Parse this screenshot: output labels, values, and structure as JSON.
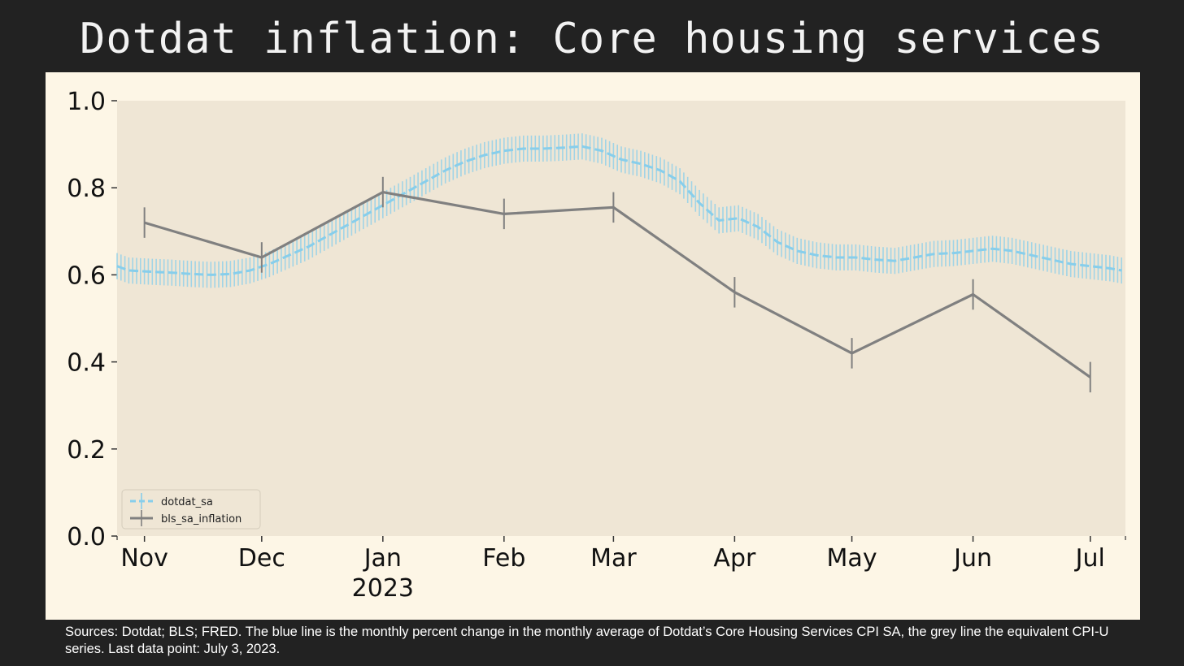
{
  "title": "Dotdat inflation: Core housing services",
  "footnote": "Sources: Dotdat; BLS; FRED. The blue line is the monthly percent change in the monthly average of Dotdat’s Core Housing Services CPI SA, the grey line the equivalent CPI-U series. Last data point: July 3, 2023.",
  "colors": {
    "page_background": "#222222",
    "panel_background": "#fdf6e6",
    "plot_background": "#efe6d5",
    "dotdat": "#87ceeb",
    "bls": "#808080"
  },
  "chart_data": {
    "type": "line",
    "title": "",
    "xlabel": "",
    "ylabel": "",
    "ylim": [
      0,
      1.0
    ],
    "xlim": [
      "2022-10-25",
      "2023-07-10"
    ],
    "yticks": [
      "0.0",
      "0.2",
      "0.4",
      "0.6",
      "0.8",
      "1.0"
    ],
    "xticks": [
      {
        "date": "2022-11-01",
        "label": "Nov"
      },
      {
        "date": "2022-12-01",
        "label": "Dec"
      },
      {
        "date": "2023-01-01",
        "label": "Jan",
        "sublabel": "2023"
      },
      {
        "date": "2023-02-01",
        "label": "Feb"
      },
      {
        "date": "2023-03-01",
        "label": "Mar"
      },
      {
        "date": "2023-04-01",
        "label": "Apr"
      },
      {
        "date": "2023-05-01",
        "label": "May"
      },
      {
        "date": "2023-06-01",
        "label": "Jun"
      },
      {
        "date": "2023-07-01",
        "label": "Jul"
      }
    ],
    "grid": false,
    "legend_position": "lower-left",
    "series": [
      {
        "name": "dotdat_sa",
        "style": "dashed",
        "error": 0.03,
        "x": [
          "2022-10-25",
          "2022-10-28",
          "2022-11-03",
          "2022-11-08",
          "2022-11-13",
          "2022-11-18",
          "2022-11-23",
          "2022-11-28",
          "2022-12-03",
          "2022-12-08",
          "2022-12-13",
          "2022-12-18",
          "2022-12-23",
          "2022-12-28",
          "2023-01-02",
          "2023-01-07",
          "2023-01-12",
          "2023-01-17",
          "2023-01-22",
          "2023-01-27",
          "2023-02-01",
          "2023-02-06",
          "2023-02-11",
          "2023-02-16",
          "2023-02-21",
          "2023-02-26",
          "2023-03-03",
          "2023-03-08",
          "2023-03-13",
          "2023-03-18",
          "2023-03-23",
          "2023-03-28",
          "2023-04-02",
          "2023-04-07",
          "2023-04-12",
          "2023-04-17",
          "2023-04-22",
          "2023-04-27",
          "2023-05-02",
          "2023-05-07",
          "2023-05-12",
          "2023-05-17",
          "2023-05-22",
          "2023-05-27",
          "2023-06-01",
          "2023-06-06",
          "2023-06-11",
          "2023-06-16",
          "2023-06-21",
          "2023-06-26",
          "2023-07-01",
          "2023-07-06",
          "2023-07-09"
        ],
        "y": [
          0.62,
          0.61,
          0.607,
          0.605,
          0.602,
          0.6,
          0.602,
          0.61,
          0.625,
          0.645,
          0.665,
          0.69,
          0.715,
          0.74,
          0.765,
          0.79,
          0.815,
          0.84,
          0.86,
          0.875,
          0.885,
          0.89,
          0.89,
          0.892,
          0.895,
          0.885,
          0.865,
          0.855,
          0.84,
          0.815,
          0.765,
          0.725,
          0.73,
          0.71,
          0.675,
          0.655,
          0.645,
          0.64,
          0.64,
          0.635,
          0.632,
          0.64,
          0.648,
          0.65,
          0.655,
          0.66,
          0.655,
          0.645,
          0.635,
          0.625,
          0.62,
          0.615,
          0.61
        ]
      },
      {
        "name": "bls_sa_inflation",
        "style": "solid",
        "error": 0.035,
        "x": [
          "2022-11-01",
          "2022-12-01",
          "2023-01-01",
          "2023-02-01",
          "2023-03-01",
          "2023-04-01",
          "2023-05-01",
          "2023-06-01",
          "2023-07-01"
        ],
        "y": [
          0.72,
          0.64,
          0.79,
          0.74,
          0.755,
          0.56,
          0.42,
          0.555,
          0.365
        ]
      }
    ]
  }
}
